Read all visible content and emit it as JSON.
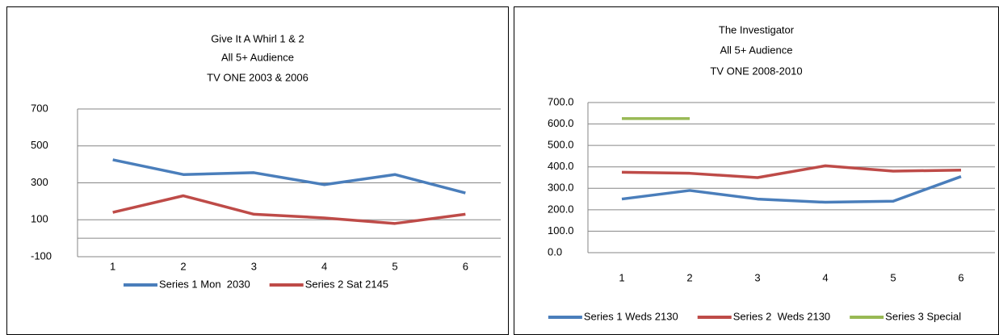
{
  "chart_data": [
    {
      "type": "line",
      "title": "Give It A Whirl 1 & 2",
      "subtitle": [
        "All 5+ Audience",
        "TV ONE 2003 & 2006"
      ],
      "categories": [
        "1",
        "2",
        "3",
        "4",
        "5",
        "6"
      ],
      "series": [
        {
          "name": "Series 1 Mon  2030",
          "color": "#4a7ebb",
          "values": [
            425,
            345,
            355,
            290,
            345,
            245
          ]
        },
        {
          "name": "Series 2 Sat 2145",
          "color": "#be4b48",
          "values": [
            140,
            230,
            130,
            110,
            80,
            130
          ]
        }
      ],
      "ylim": [
        -100,
        700
      ],
      "yticks": [
        -100,
        100,
        300,
        500,
        700
      ],
      "grid": true,
      "legend": "bottom"
    },
    {
      "type": "line",
      "title": "The Investigator",
      "subtitle": [
        "All 5+ Audience",
        "TV ONE 2008-2010"
      ],
      "categories": [
        "1",
        "2",
        "3",
        "4",
        "5",
        "6"
      ],
      "series": [
        {
          "name": "Series 1 Weds 2130",
          "color": "#4a7ebb",
          "values": [
            250,
            290,
            250,
            235,
            240,
            355
          ]
        },
        {
          "name": "Series 2  Weds 2130",
          "color": "#be4b48",
          "values": [
            375,
            370,
            350,
            405,
            380,
            385
          ]
        },
        {
          "name": "Series 3 Special",
          "color": "#98b954",
          "values": [
            625,
            625,
            null,
            null,
            null,
            null
          ]
        }
      ],
      "ylim": [
        0,
        700
      ],
      "yticks": [
        {
          "value": 0,
          "label": "0.0"
        },
        {
          "value": 100,
          "label": "100.0"
        },
        {
          "value": 200,
          "label": "200.0"
        },
        {
          "value": 300,
          "label": "300.0"
        },
        {
          "value": 400,
          "label": "400.0"
        },
        {
          "value": 500,
          "label": "500.0"
        },
        {
          "value": 600,
          "label": "600.0"
        },
        {
          "value": 700,
          "label": "700.0"
        }
      ],
      "grid": true,
      "legend": "bottom"
    }
  ]
}
